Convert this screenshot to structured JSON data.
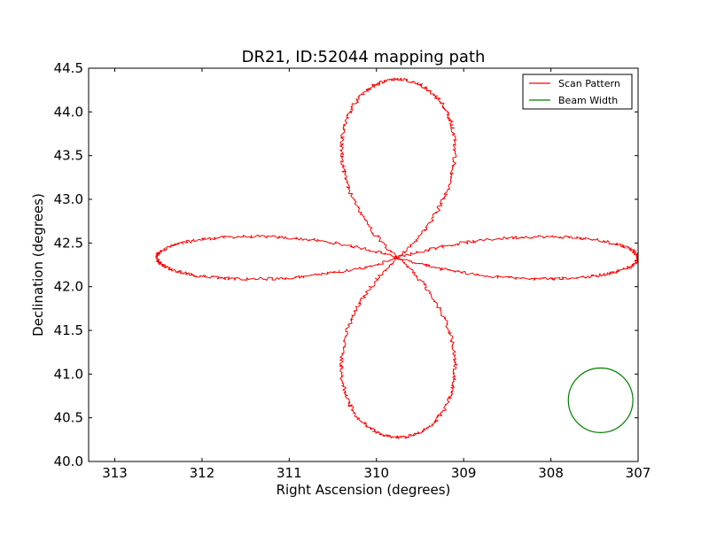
{
  "chart_data": {
    "type": "line",
    "title": "DR21, ID:52044 mapping path",
    "xlabel": "Right Ascension (degrees)",
    "ylabel": "Declination (degrees)",
    "xlim": [
      313.3,
      307.0
    ],
    "ylim": [
      40.0,
      44.5
    ],
    "x_axis_inverted": true,
    "xticks": [
      313,
      312,
      311,
      310,
      309,
      308,
      307
    ],
    "yticks": [
      40.0,
      40.5,
      41.0,
      41.5,
      42.0,
      42.5,
      43.0,
      43.5,
      44.0,
      44.5
    ],
    "xtick_labels": [
      "313",
      "312",
      "311",
      "310",
      "309",
      "308",
      "307"
    ],
    "ytick_labels": [
      "40.0",
      "40.5",
      "41.0",
      "41.5",
      "42.0",
      "42.5",
      "43.0",
      "43.5",
      "44.0",
      "44.5"
    ],
    "grid": false,
    "legend_position": "top-right",
    "series": [
      {
        "name": "Scan Pattern",
        "kind": "rose-curve",
        "color": "#ff0000",
        "center": [
          309.75,
          42.33
        ],
        "lobes": 4,
        "lobe_orientation_degrees": [
          0,
          90,
          180,
          270
        ],
        "lobe_tips": [
          {
            "direction": "north",
            "ra": 309.75,
            "dec": 44.37
          },
          {
            "direction": "south",
            "ra": 309.75,
            "dec": 40.28
          },
          {
            "direction": "east",
            "ra": 312.52,
            "dec": 42.33
          },
          {
            "direction": "west",
            "ra": 307.0,
            "dec": 42.33
          }
        ],
        "lobe_half_width_ra": 0.26,
        "lobe_half_width_dec": 0.3
      },
      {
        "name": "Beam Width",
        "kind": "circle",
        "color": "#008000",
        "center": [
          307.43,
          40.7
        ],
        "radius_ra": 0.37,
        "radius_dec": 0.36
      }
    ]
  }
}
